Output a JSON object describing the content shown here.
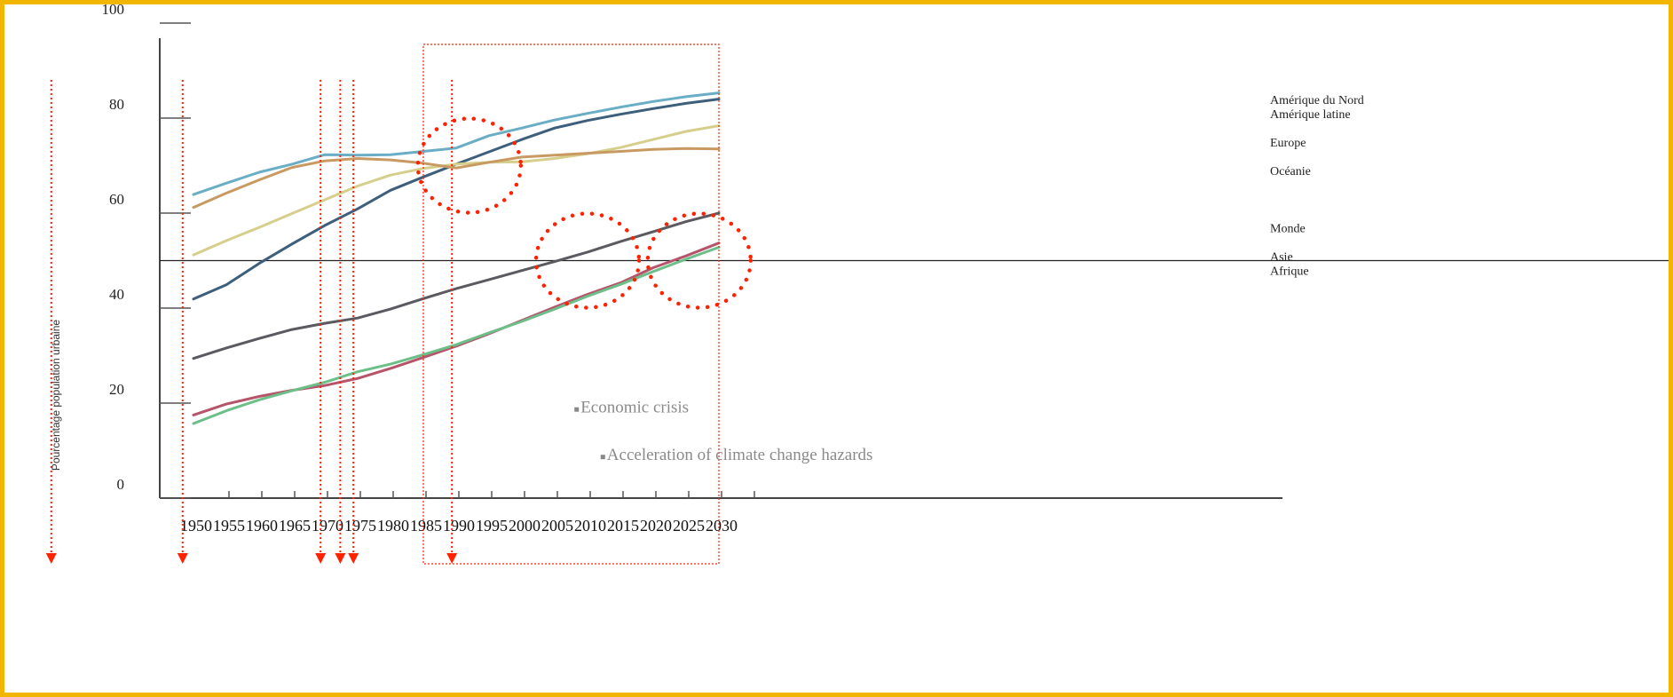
{
  "chart_data": {
    "type": "line",
    "title": "",
    "xlabel": "",
    "ylabel": "Pourcentage population urbaine",
    "xlim": [
      1950,
      2030
    ],
    "ylim": [
      0,
      100
    ],
    "x_ticks": [
      1950,
      1955,
      1960,
      1965,
      1970,
      1975,
      1980,
      1985,
      1990,
      1995,
      2000,
      2005,
      2010,
      2015,
      2020,
      2025,
      2030
    ],
    "y_tick_labels": [
      {
        "value": 0,
        "label": "0"
      },
      {
        "value": 20,
        "label": "20"
      },
      {
        "value": 40,
        "label": "40"
      },
      {
        "value": 60,
        "label": "60"
      },
      {
        "value": 80,
        "label": "80"
      },
      {
        "value": 100,
        "label": "100"
      }
    ],
    "reference_line": 50,
    "colors": {
      "amerique_nord": "#6aaec6",
      "amerique_latine": "#3d5f7c",
      "europe": "#d6cf8c",
      "oceanie": "#c89a62",
      "monde": "#5a5a60",
      "asie": "#b5546a",
      "afrique": "#6dbf8a",
      "annotation": "#ff2200"
    },
    "series": [
      {
        "name": "Amérique du Nord",
        "x": [
          1950,
          1955,
          1960,
          1965,
          1970,
          1975,
          1980,
          1985,
          1990,
          1995,
          2000,
          2005,
          2010,
          2015,
          2020,
          2025,
          2030
        ],
        "values": [
          63.9,
          66.3,
          68.6,
          70.3,
          72.3,
          72.2,
          72.3,
          73.0,
          73.7,
          76.3,
          77.9,
          79.6,
          81.0,
          82.3,
          83.5,
          84.5,
          85.3
        ]
      },
      {
        "name": "Amérique latine",
        "x": [
          1950,
          1955,
          1960,
          1965,
          1970,
          1975,
          1980,
          1985,
          1990,
          1995,
          2000,
          2005,
          2010,
          2015,
          2020,
          2025,
          2030
        ],
        "values": [
          41.9,
          44.9,
          49.4,
          53.5,
          57.4,
          60.9,
          64.8,
          67.6,
          70.3,
          72.9,
          75.5,
          77.9,
          79.5,
          80.8,
          82.0,
          83.1,
          84.0
        ]
      },
      {
        "name": "Europe",
        "x": [
          1950,
          1955,
          1960,
          1965,
          1970,
          1975,
          1980,
          1985,
          1990,
          1995,
          2000,
          2005,
          2010,
          2015,
          2020,
          2025,
          2030
        ],
        "values": [
          51.2,
          54.2,
          57.0,
          59.9,
          62.8,
          65.7,
          68.0,
          69.4,
          70.3,
          70.7,
          70.8,
          71.5,
          72.5,
          73.8,
          75.5,
          77.2,
          78.4
        ]
      },
      {
        "name": "Océanie",
        "x": [
          1950,
          1955,
          1960,
          1965,
          1970,
          1975,
          1980,
          1985,
          1990,
          1995,
          2000,
          2005,
          2010,
          2015,
          2020,
          2025,
          2030
        ],
        "values": [
          61.2,
          64.2,
          67.0,
          69.6,
          71.0,
          71.5,
          71.2,
          70.5,
          69.5,
          70.7,
          71.8,
          72.2,
          72.6,
          73.0,
          73.4,
          73.6,
          73.5
        ]
      },
      {
        "name": "Monde",
        "x": [
          1950,
          1955,
          1960,
          1965,
          1970,
          1975,
          1980,
          1985,
          1990,
          1995,
          2000,
          2005,
          2010,
          2015,
          2020,
          2025,
          2030
        ],
        "values": [
          29.4,
          31.6,
          33.6,
          35.5,
          36.8,
          37.9,
          39.8,
          42.0,
          44.1,
          46.0,
          47.9,
          49.8,
          51.8,
          54.0,
          56.1,
          58.2,
          60.0
        ]
      },
      {
        "name": "Asie",
        "x": [
          1950,
          1955,
          1960,
          1965,
          1970,
          1975,
          1980,
          1985,
          1990,
          1995,
          2000,
          2005,
          2010,
          2015,
          2020,
          2025,
          2030
        ],
        "values": [
          17.5,
          19.8,
          21.4,
          22.7,
          23.7,
          25.2,
          27.3,
          29.6,
          32.0,
          34.6,
          37.4,
          40.2,
          42.9,
          45.3,
          48.5,
          51.0,
          53.7
        ]
      },
      {
        "name": "Afrique",
        "x": [
          1950,
          1955,
          1960,
          1965,
          1970,
          1975,
          1980,
          1985,
          1990,
          1995,
          2000,
          2005,
          2010,
          2015,
          2020,
          2025,
          2030
        ],
        "values": [
          15.7,
          18.4,
          20.7,
          22.6,
          24.4,
          26.6,
          28.2,
          30.2,
          32.3,
          34.8,
          37.2,
          39.8,
          42.5,
          45.0,
          47.7,
          50.3,
          52.8
        ]
      }
    ],
    "legend": {
      "placement": "right",
      "entries": [
        {
          "label": "Amérique du Nord",
          "y_value": 83
        },
        {
          "label": "Amérique latine",
          "y_value": 80
        },
        {
          "label": "Europe",
          "y_value": 74
        },
        {
          "label": "Océanie",
          "y_value": 68
        },
        {
          "label": "Monde",
          "y_value": 56
        },
        {
          "label": "Asie",
          "y_value": 50
        },
        {
          "label": "Afrique",
          "y_value": 47
        }
      ]
    },
    "annotations": {
      "highlight_years": [
        1927,
        1947,
        1968,
        1971,
        1973,
        1988
      ],
      "circles": [
        {
          "x": 1992,
          "y": 70
        },
        {
          "x": 2010,
          "y": 50
        },
        {
          "x": 2027,
          "y": 50
        }
      ],
      "highlight_range": [
        1985,
        2030
      ],
      "notes": [
        {
          "text": "Economic crisis",
          "year": 2008,
          "y": 18
        },
        {
          "text": "Acceleration of climate change hazards",
          "year": 2012,
          "y": 8
        }
      ]
    }
  }
}
